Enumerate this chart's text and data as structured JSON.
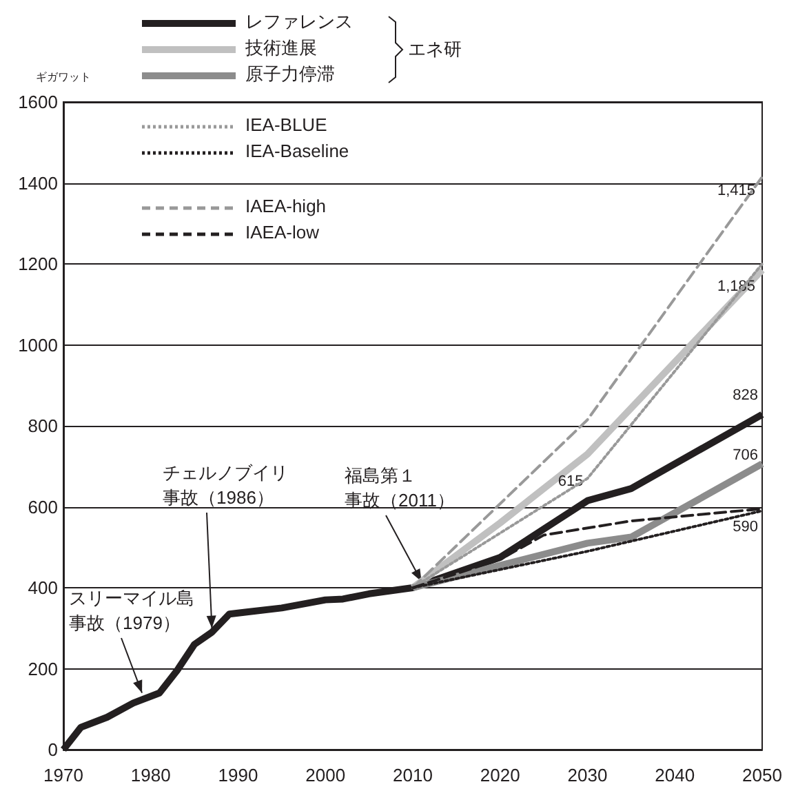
{
  "chart_data": {
    "type": "line",
    "ylabel": "ギガワット",
    "legend_title": "エネ研",
    "legend": "top left",
    "grid": "y",
    "marker": "none",
    "xlim": [
      1970,
      2050
    ],
    "xticks": [
      1970,
      1980,
      1990,
      2000,
      2010,
      2020,
      2030,
      2040,
      2050
    ],
    "ylim": [
      0,
      1600
    ],
    "yticks": [
      0,
      200,
      400,
      600,
      800,
      1000,
      1200,
      1400,
      1600
    ],
    "series": [
      {
        "name": "レファレンス",
        "color": "#231f20",
        "line_style": "solid",
        "x": [
          1970,
          1972,
          1975,
          1978,
          1981,
          1983,
          1985,
          1987,
          1989,
          1991,
          1995,
          2000,
          2002,
          2005,
          2010,
          2020,
          2030,
          2035,
          2050
        ],
        "values": [
          0,
          55,
          80,
          115,
          140,
          195,
          260,
          290,
          335,
          340,
          350,
          370,
          372,
          385,
          400,
          475,
          615,
          645,
          828
        ],
        "value_labels": [
          null,
          null,
          null,
          null,
          null,
          null,
          null,
          null,
          null,
          null,
          null,
          null,
          null,
          null,
          null,
          null,
          "615",
          null,
          "828"
        ]
      },
      {
        "name": "技術進展",
        "color": "#c0c0c0",
        "line_style": "solid",
        "x": [
          2010,
          2020,
          2030,
          2050
        ],
        "values": [
          400,
          560,
          730,
          1185
        ],
        "value_labels": [
          null,
          null,
          null,
          "1,185"
        ]
      },
      {
        "name": "原子力停滞",
        "color": "#8c8c8c",
        "line_style": "solid",
        "x": [
          2010,
          2020,
          2030,
          2035,
          2050
        ],
        "values": [
          400,
          455,
          510,
          525,
          706
        ],
        "value_labels": [
          null,
          null,
          null,
          null,
          "706"
        ]
      },
      {
        "name": "IEA-BLUE",
        "color": "#999999",
        "line_style": "dotted",
        "x": [
          2010,
          2030,
          2050
        ],
        "values": [
          400,
          670,
          1200
        ]
      },
      {
        "name": "IEA-Baseline",
        "color": "#231f20",
        "line_style": "dotted",
        "x": [
          2010,
          2030,
          2050
        ],
        "values": [
          400,
          490,
          590
        ],
        "value_labels": [
          null,
          null,
          "590"
        ]
      },
      {
        "name": "IAEA-high",
        "color": "#999999",
        "line_style": "dashed",
        "x": [
          2010,
          2030,
          2050
        ],
        "values": [
          400,
          815,
          1415
        ],
        "value_labels": [
          null,
          null,
          "1,415"
        ]
      },
      {
        "name": "IAEA-low",
        "color": "#231f20",
        "line_style": "dashed",
        "x": [
          2010,
          2020,
          2025,
          2035,
          2050
        ],
        "values": [
          400,
          470,
          530,
          565,
          595
        ]
      }
    ],
    "annotations": [
      {
        "text": "スリーマイル島事故（1979）",
        "x": 1979,
        "y": 130
      },
      {
        "text": "チェルノブイリ事故（1986）",
        "x": 1987,
        "y": 290
      },
      {
        "text": "福島第１事故（2011）",
        "x": 2011,
        "y": 405
      }
    ]
  }
}
